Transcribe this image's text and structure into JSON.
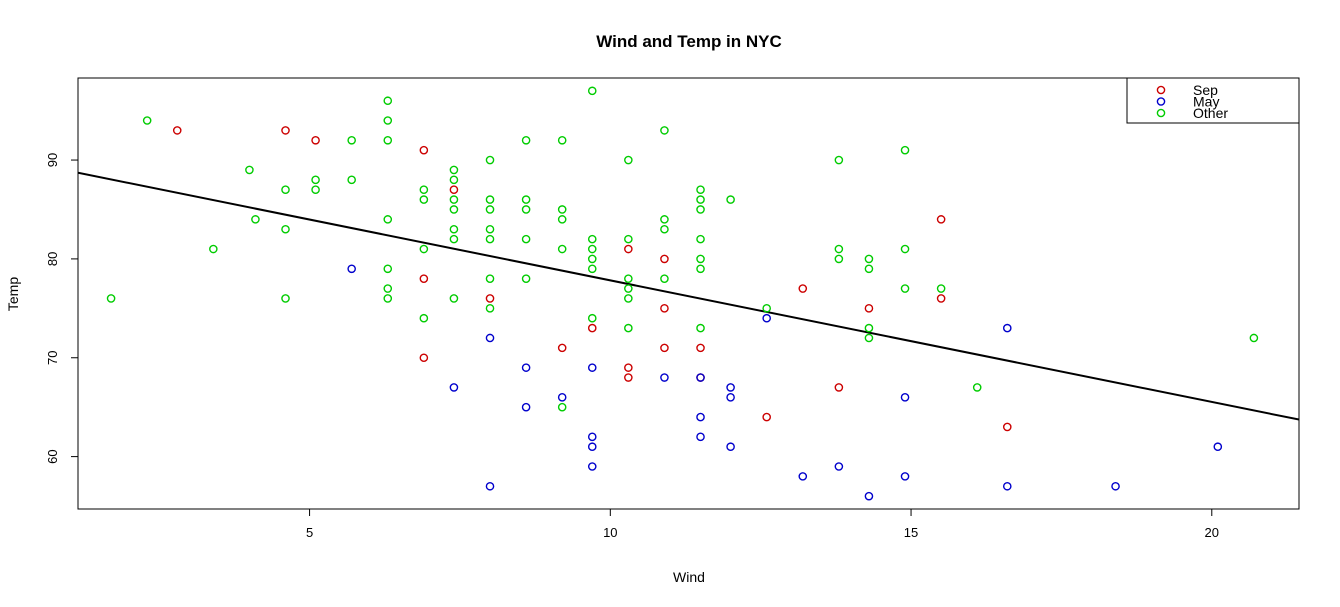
{
  "chart_data": {
    "type": "scatter",
    "title": "Wind and Temp in NYC",
    "xlabel": "Wind",
    "ylabel": "Temp",
    "xlim": [
      1.15,
      21.45
    ],
    "ylim": [
      54.7,
      98.3
    ],
    "x_ticks": [
      5,
      10,
      15,
      20
    ],
    "y_ticks": [
      60,
      70,
      80,
      90
    ],
    "grid": false,
    "legend_position": "top-right",
    "legend": [
      {
        "label": "Sep",
        "color": "#cc0000"
      },
      {
        "label": "May",
        "color": "#0000cc"
      },
      {
        "label": "Other",
        "color": "#00cc00"
      }
    ],
    "regression_line": {
      "intercept": 90.13,
      "slope": -1.23,
      "color": "#000000"
    },
    "series": [
      {
        "name": "Sep",
        "color": "#cc0000",
        "points": [
          [
            2.8,
            93
          ],
          [
            4.6,
            93
          ],
          [
            5.1,
            92
          ],
          [
            6.9,
            91
          ],
          [
            7.4,
            87
          ],
          [
            6.9,
            78
          ],
          [
            6.9,
            70
          ],
          [
            8.0,
            76
          ],
          [
            9.7,
            73
          ],
          [
            9.2,
            71
          ],
          [
            10.3,
            81
          ],
          [
            10.3,
            69
          ],
          [
            10.3,
            68
          ],
          [
            10.9,
            80
          ],
          [
            10.9,
            75
          ],
          [
            10.9,
            71
          ],
          [
            11.5,
            71
          ],
          [
            11.5,
            68
          ],
          [
            12.6,
            64
          ],
          [
            13.2,
            77
          ],
          [
            13.8,
            67
          ],
          [
            14.3,
            75
          ],
          [
            15.5,
            84
          ],
          [
            15.5,
            76
          ],
          [
            16.6,
            63
          ]
        ]
      },
      {
        "name": "May",
        "color": "#0000cc",
        "points": [
          [
            5.7,
            79
          ],
          [
            7.4,
            67
          ],
          [
            8.0,
            72
          ],
          [
            8.0,
            57
          ],
          [
            8.6,
            69
          ],
          [
            8.6,
            65
          ],
          [
            9.2,
            66
          ],
          [
            9.7,
            69
          ],
          [
            9.7,
            62
          ],
          [
            9.7,
            61
          ],
          [
            9.7,
            59
          ],
          [
            10.9,
            68
          ],
          [
            11.5,
            68
          ],
          [
            11.5,
            64
          ],
          [
            11.5,
            62
          ],
          [
            12.0,
            67
          ],
          [
            12.0,
            66
          ],
          [
            12.0,
            61
          ],
          [
            12.6,
            74
          ],
          [
            13.2,
            58
          ],
          [
            13.8,
            59
          ],
          [
            14.3,
            56
          ],
          [
            14.9,
            66
          ],
          [
            14.9,
            58
          ],
          [
            16.6,
            73
          ],
          [
            16.6,
            57
          ],
          [
            18.4,
            57
          ],
          [
            20.1,
            61
          ]
        ]
      },
      {
        "name": "Other",
        "color": "#00cc00",
        "points": [
          [
            1.7,
            76
          ],
          [
            2.3,
            94
          ],
          [
            3.4,
            81
          ],
          [
            4.0,
            89
          ],
          [
            4.1,
            84
          ],
          [
            4.6,
            87
          ],
          [
            4.6,
            83
          ],
          [
            4.6,
            76
          ],
          [
            5.1,
            88
          ],
          [
            5.1,
            87
          ],
          [
            5.7,
            92
          ],
          [
            5.7,
            88
          ],
          [
            6.3,
            96
          ],
          [
            6.3,
            94
          ],
          [
            6.3,
            92
          ],
          [
            6.3,
            84
          ],
          [
            6.3,
            79
          ],
          [
            6.3,
            77
          ],
          [
            6.3,
            76
          ],
          [
            6.9,
            87
          ],
          [
            6.9,
            86
          ],
          [
            6.9,
            81
          ],
          [
            6.9,
            74
          ],
          [
            7.4,
            89
          ],
          [
            7.4,
            88
          ],
          [
            7.4,
            86
          ],
          [
            7.4,
            85
          ],
          [
            7.4,
            83
          ],
          [
            7.4,
            82
          ],
          [
            7.4,
            76
          ],
          [
            8.0,
            90
          ],
          [
            8.0,
            86
          ],
          [
            8.0,
            85
          ],
          [
            8.0,
            83
          ],
          [
            8.0,
            82
          ],
          [
            8.0,
            78
          ],
          [
            8.0,
            75
          ],
          [
            8.6,
            92
          ],
          [
            8.6,
            86
          ],
          [
            8.6,
            85
          ],
          [
            8.6,
            82
          ],
          [
            8.6,
            78
          ],
          [
            9.2,
            92
          ],
          [
            9.2,
            85
          ],
          [
            9.2,
            84
          ],
          [
            9.2,
            81
          ],
          [
            9.2,
            65
          ],
          [
            9.7,
            97
          ],
          [
            9.7,
            82
          ],
          [
            9.7,
            81
          ],
          [
            9.7,
            80
          ],
          [
            9.7,
            79
          ],
          [
            9.7,
            74
          ],
          [
            10.3,
            90
          ],
          [
            10.3,
            82
          ],
          [
            10.3,
            78
          ],
          [
            10.3,
            77
          ],
          [
            10.3,
            76
          ],
          [
            10.3,
            73
          ],
          [
            10.9,
            93
          ],
          [
            10.9,
            84
          ],
          [
            10.9,
            83
          ],
          [
            10.9,
            78
          ],
          [
            11.5,
            87
          ],
          [
            11.5,
            86
          ],
          [
            11.5,
            85
          ],
          [
            11.5,
            82
          ],
          [
            11.5,
            80
          ],
          [
            11.5,
            79
          ],
          [
            11.5,
            73
          ],
          [
            12.0,
            86
          ],
          [
            12.6,
            75
          ],
          [
            13.8,
            90
          ],
          [
            13.8,
            81
          ],
          [
            13.8,
            80
          ],
          [
            14.3,
            80
          ],
          [
            14.3,
            79
          ],
          [
            14.3,
            73
          ],
          [
            14.3,
            72
          ],
          [
            14.9,
            91
          ],
          [
            14.9,
            81
          ],
          [
            14.9,
            77
          ],
          [
            15.5,
            77
          ],
          [
            16.1,
            67
          ],
          [
            20.7,
            72
          ]
        ]
      }
    ]
  }
}
